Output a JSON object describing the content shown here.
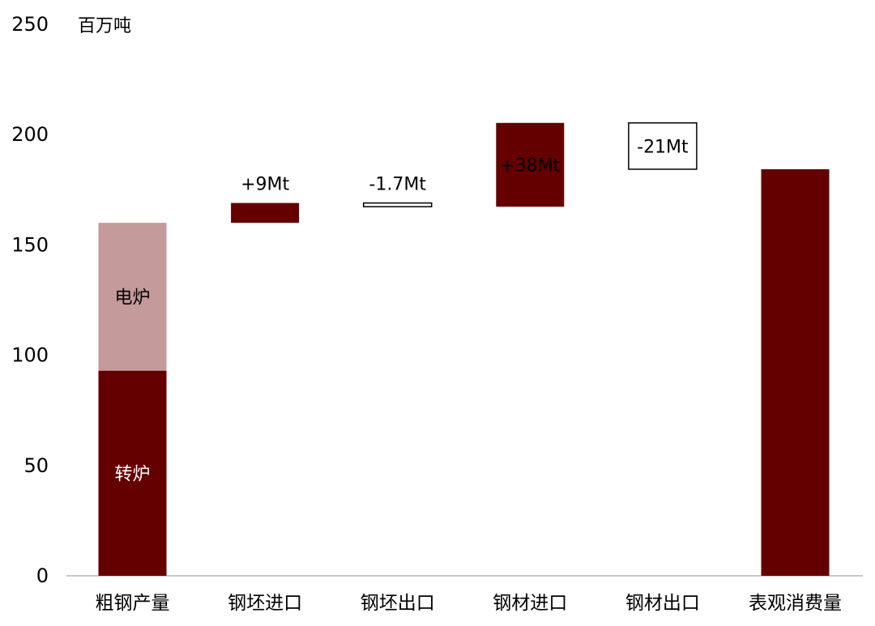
{
  "chart_data": {
    "type": "bar",
    "subtype": "waterfall",
    "unit_label": "百万吨",
    "ylim": [
      0,
      250
    ],
    "yticks": [
      0,
      50,
      100,
      150,
      200,
      250
    ],
    "grid": false,
    "categories": [
      "粗钢产量",
      "钢坯进口",
      "钢坯出口",
      "钢材进口",
      "钢材出口",
      "表观消费量"
    ],
    "bars": [
      {
        "category": "粗钢产量",
        "kind": "stacked",
        "segments": [
          {
            "label": "转炉",
            "from": 0,
            "to": 93,
            "color": "#640000"
          },
          {
            "label": "电炉",
            "from": 93,
            "to": 160,
            "color": "#c49a9a"
          }
        ]
      },
      {
        "category": "钢坯进口",
        "kind": "delta",
        "from": 160,
        "to": 169,
        "label": "+9Mt",
        "fill": "#640000",
        "label_position": "above"
      },
      {
        "category": "钢坯出口",
        "kind": "delta",
        "from": 169,
        "to": 167.3,
        "label": "-1.7Mt",
        "fill": "#ffffff",
        "label_position": "above"
      },
      {
        "category": "钢材进口",
        "kind": "delta",
        "from": 167.3,
        "to": 205.3,
        "label": "+38Mt",
        "fill": "#640000",
        "label_position": "inside"
      },
      {
        "category": "钢材出口",
        "kind": "delta",
        "from": 205.3,
        "to": 184.3,
        "label": "-21Mt",
        "fill": "#ffffff",
        "label_position": "inside"
      },
      {
        "category": "表观消费量",
        "kind": "total",
        "from": 0,
        "to": 184.3,
        "fill": "#640000"
      }
    ],
    "colors": {
      "dark": "#640000",
      "light": "#c49a9a",
      "outline": "#000000"
    }
  }
}
